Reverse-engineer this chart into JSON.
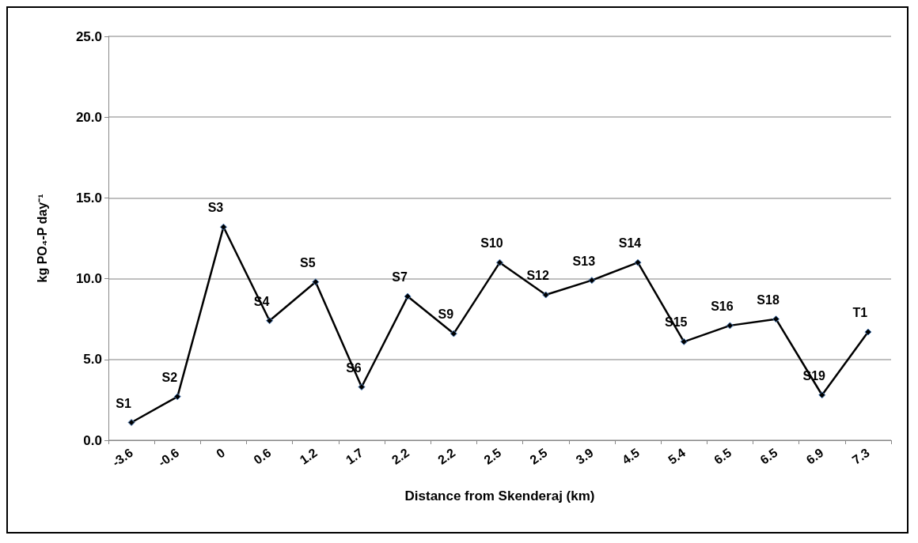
{
  "chart_data": {
    "type": "line",
    "xlabel": "Distance from Skenderaj (km)",
    "ylabel": "kg PO₄-P day⁻¹",
    "categories": [
      "-3.6",
      "-0.6",
      "0",
      "0.6",
      "1.2",
      "1.7",
      "2.2",
      "2.2",
      "2.5",
      "2.5",
      "3.9",
      "4.5",
      "5.4",
      "6.5",
      "6.5",
      "6.9",
      "7.3"
    ],
    "series": [
      {
        "color": "#000000",
        "values": [
          1.1,
          2.7,
          13.2,
          7.4,
          9.8,
          3.3,
          8.9,
          6.6,
          11.0,
          9.0,
          9.9,
          11.0,
          6.1,
          7.1,
          7.5,
          2.8,
          6.7
        ],
        "value_labels": [
          "S1",
          "S2",
          "S3",
          "S4",
          "S5",
          "S6",
          "S7",
          "S9",
          "S10",
          "S12",
          "S13",
          "S14",
          "S15",
          "S16",
          "S18",
          "S19",
          "T1"
        ]
      }
    ],
    "ylim": [
      0,
      25
    ],
    "yticks": [
      {
        "value": 0,
        "label": "0.0"
      },
      {
        "value": 5,
        "label": "5.0"
      },
      {
        "value": 10,
        "label": "10.0"
      },
      {
        "value": 15,
        "label": "15.0"
      },
      {
        "value": 20,
        "label": "20.0"
      },
      {
        "value": 25,
        "label": "25.0"
      }
    ],
    "grid": "y",
    "marker": "diamond",
    "line_style": "solid"
  }
}
